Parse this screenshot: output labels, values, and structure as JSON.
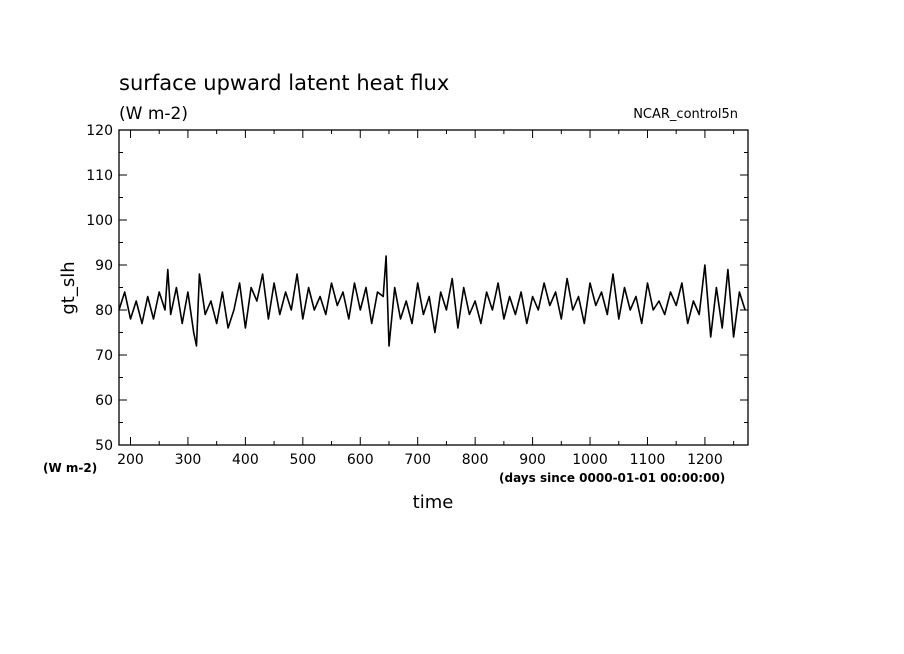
{
  "chart_data": {
    "type": "line",
    "title": "surface upward latent heat flux",
    "subtitle": "(W m-2)",
    "source_label": "NCAR_control5n",
    "ylabel": "gt_slh",
    "yunit_label": "(W m-2)",
    "xlabel": "time",
    "xunit_label": "(days since 0000-01-01 00:00:00)",
    "xlim": [
      180,
      1275
    ],
    "ylim": [
      50,
      120
    ],
    "xticks": [
      200,
      300,
      400,
      500,
      600,
      700,
      800,
      900,
      1000,
      1100,
      1200
    ],
    "xtick_labels": [
      "200",
      "300",
      "400",
      "500",
      "600",
      "700",
      "800",
      "900",
      "1000",
      "1100",
      "1200"
    ],
    "yticks": [
      50,
      60,
      70,
      80,
      90,
      100,
      110,
      120
    ],
    "ytick_labels": [
      "50",
      "60",
      "70",
      "80",
      "90",
      "100",
      "110",
      "120"
    ],
    "grid": false,
    "line_color": "#000000",
    "series": [
      {
        "x": [
          180,
          190,
          200,
          210,
          220,
          230,
          240,
          250,
          260,
          265,
          270,
          280,
          290,
          300,
          310,
          315,
          320,
          330,
          340,
          350,
          360,
          370,
          380,
          390,
          400,
          410,
          420,
          430,
          440,
          450,
          460,
          470,
          480,
          490,
          500,
          510,
          520,
          530,
          540,
          550,
          560,
          570,
          580,
          590,
          600,
          610,
          620,
          630,
          640,
          645,
          650,
          660,
          670,
          680,
          690,
          700,
          710,
          720,
          730,
          740,
          750,
          760,
          770,
          780,
          790,
          800,
          810,
          820,
          830,
          840,
          850,
          860,
          870,
          880,
          890,
          900,
          910,
          920,
          930,
          940,
          950,
          960,
          970,
          980,
          990,
          1000,
          1010,
          1020,
          1030,
          1040,
          1050,
          1060,
          1070,
          1080,
          1090,
          1100,
          1110,
          1120,
          1130,
          1140,
          1150,
          1160,
          1170,
          1180,
          1190,
          1200,
          1210,
          1220,
          1230,
          1240,
          1250,
          1260,
          1270
        ],
        "y": [
          80,
          84,
          78,
          82,
          77,
          83,
          78,
          84,
          80,
          89,
          79,
          85,
          77,
          84,
          75,
          72,
          88,
          79,
          82,
          77,
          84,
          76,
          80,
          86,
          76,
          85,
          82,
          88,
          78,
          86,
          79,
          84,
          80,
          88,
          78,
          85,
          80,
          83,
          79,
          86,
          81,
          84,
          78,
          86,
          80,
          85,
          77,
          84,
          83,
          92,
          72,
          85,
          78,
          82,
          77,
          86,
          79,
          83,
          75,
          84,
          80,
          87,
          76,
          85,
          79,
          82,
          77,
          84,
          80,
          86,
          78,
          83,
          79,
          84,
          77,
          83,
          80,
          86,
          81,
          84,
          78,
          87,
          80,
          83,
          77,
          86,
          81,
          84,
          79,
          88,
          78,
          85,
          80,
          83,
          77,
          86,
          80,
          82,
          79,
          84,
          81,
          86,
          77,
          82,
          79,
          90,
          74,
          85,
          76,
          89,
          74,
          84,
          80
        ]
      }
    ]
  }
}
